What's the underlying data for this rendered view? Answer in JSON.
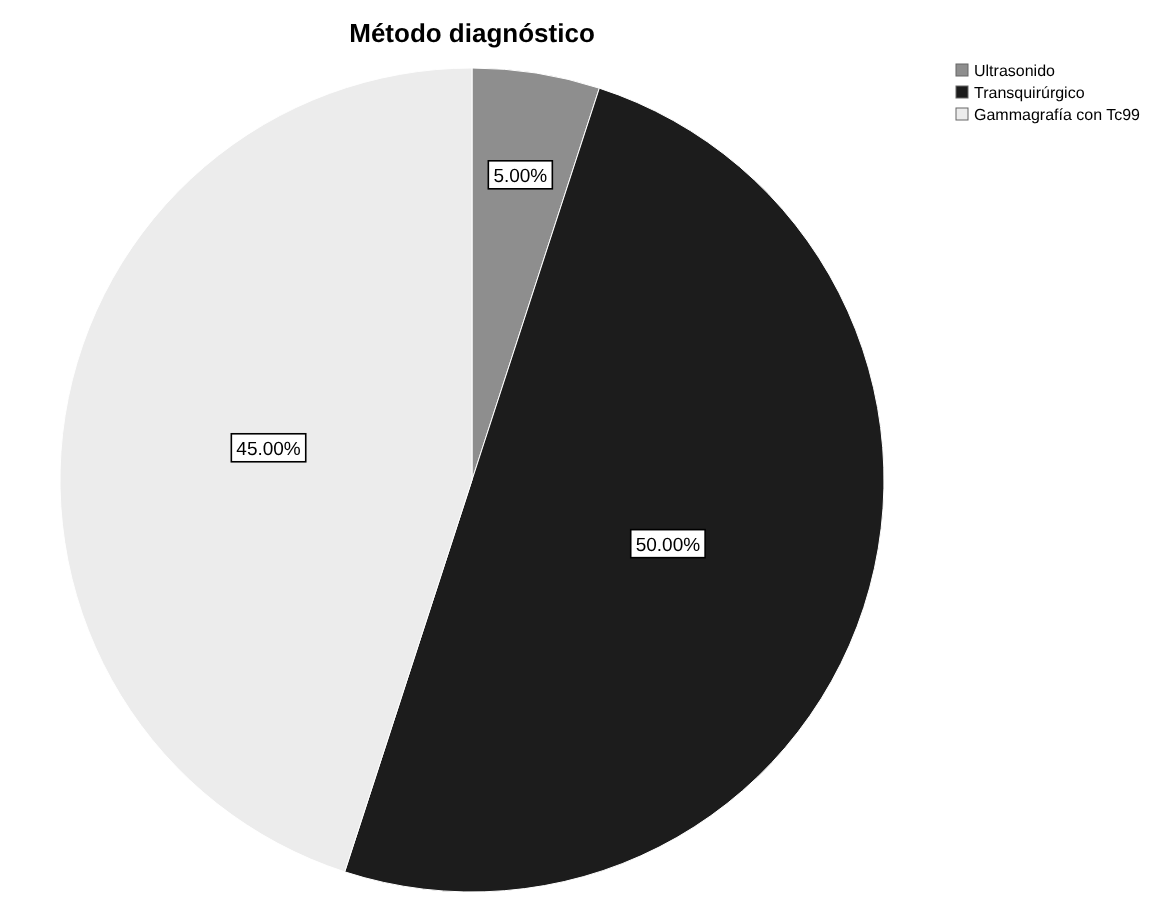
{
  "chart_data": {
    "type": "pie",
    "title": "Método diagnóstico",
    "categories": [
      "Ultrasonido",
      "Transquirúrgico",
      "Gammagrafía con Tc99"
    ],
    "values": [
      5,
      50,
      45
    ],
    "colors": [
      "#8e8e8e",
      "#1c1c1c",
      "#ececec"
    ],
    "value_labels": [
      "5.00%",
      "50.00%",
      "45.00%"
    ],
    "legend": "top right"
  }
}
